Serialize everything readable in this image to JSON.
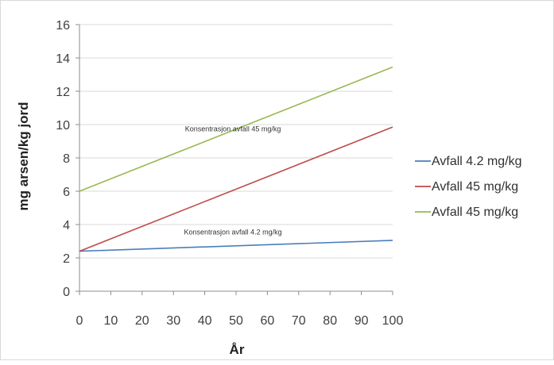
{
  "chart_data": {
    "type": "line",
    "title": "",
    "xlabel": "År",
    "ylabel": "mg arsen/kg jord",
    "x": [
      0,
      100
    ],
    "xlim": [
      0,
      100
    ],
    "ylim": [
      0,
      16
    ],
    "xticks": [
      0,
      10,
      20,
      30,
      40,
      50,
      60,
      70,
      80,
      90,
      100
    ],
    "yticks": [
      0,
      2,
      4,
      6,
      8,
      10,
      12,
      14,
      16
    ],
    "grid": "horizontal",
    "legend_position": "right",
    "series": [
      {
        "name": "Avfall 4.2 mg/kg",
        "color": "#4a7ebb",
        "values": [
          2.4,
          3.05
        ]
      },
      {
        "name": "Avfall 45 mg/kg",
        "color": "#be4b48",
        "values": [
          2.4,
          9.85
        ]
      },
      {
        "name": "Avfall 45 mg/kg",
        "color": "#98b954",
        "values": [
          6.0,
          13.45
        ]
      }
    ],
    "annotations": [
      {
        "text": "Konsentrasjon  avfall 45 mg/kg",
        "x": 49,
        "y": 9.6
      },
      {
        "text": "Konsentrasjon  avfall 4.2 mg/kg",
        "x": 49,
        "y": 3.4
      }
    ]
  }
}
